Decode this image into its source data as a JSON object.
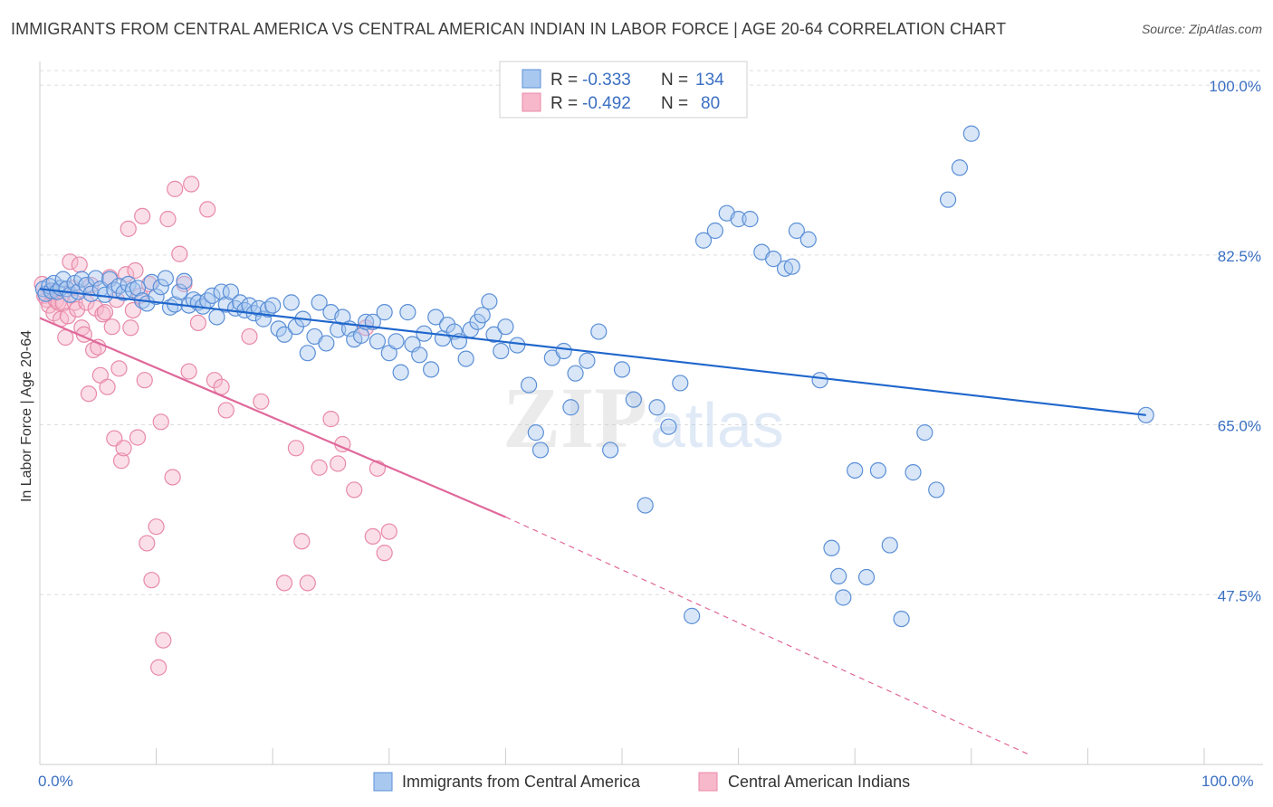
{
  "header": {
    "title": "IMMIGRANTS FROM CENTRAL AMERICA VS CENTRAL AMERICAN INDIAN IN LABOR FORCE | AGE 20-64 CORRELATION CHART",
    "source": "Source: ZipAtlas.com"
  },
  "watermark": {
    "zip": "ZIP",
    "atlas": "atlas"
  },
  "colors": {
    "blue_fill": "#a9c8f0",
    "blue_stroke": "#5b8fd6",
    "blue_line": "#1f66cc",
    "pink_fill": "#f7b8cb",
    "pink_stroke": "#e889a8",
    "pink_line": "#e0689a",
    "tick_text": "#3a6fc2",
    "grid": "#dddddd"
  },
  "legend": {
    "r_label": "R =",
    "n_label": "N =",
    "blue_r": "-0.333",
    "blue_n": "134",
    "pink_r": "-0.492",
    "pink_n": "80"
  },
  "chart_data": {
    "type": "scatter",
    "title": "IMMIGRANTS FROM CENTRAL AMERICA VS CENTRAL AMERICAN INDIAN IN LABOR FORCE | AGE 20-64 CORRELATION CHART",
    "xlabel": "",
    "ylabel": "In Labor Force | Age 20-64",
    "xlim": [
      0,
      100
    ],
    "ylim": [
      30,
      101.5
    ],
    "x_tick_labels": [
      "0.0%",
      "100.0%"
    ],
    "y_ticks": [
      47.5,
      65.0,
      82.5,
      100.0
    ],
    "y_tick_labels": [
      "47.5%",
      "65.0%",
      "82.5%",
      "100.0%"
    ],
    "grid": true,
    "legend_position": "top-center",
    "series": [
      {
        "name": "Immigrants from Central America",
        "color": "#a9c8f0",
        "r": -0.333,
        "n": 134,
        "trend": {
          "x": [
            0,
            95
          ],
          "y": [
            79.0,
            66.0
          ]
        },
        "points": [
          [
            0.3,
            79.0
          ],
          [
            0.5,
            78.5
          ],
          [
            0.8,
            79.3
          ],
          [
            1.0,
            78.8
          ],
          [
            1.2,
            79.6
          ],
          [
            1.5,
            78.7
          ],
          [
            1.8,
            79.1
          ],
          [
            2.0,
            80.0
          ],
          [
            2.3,
            79.0
          ],
          [
            2.6,
            78.4
          ],
          [
            3.0,
            79.6
          ],
          [
            3.3,
            78.7
          ],
          [
            3.6,
            80.0
          ],
          [
            4.0,
            79.4
          ],
          [
            4.4,
            78.5
          ],
          [
            4.8,
            80.1
          ],
          [
            5.2,
            79.0
          ],
          [
            5.6,
            78.4
          ],
          [
            6.0,
            80.0
          ],
          [
            6.4,
            78.9
          ],
          [
            6.8,
            79.3
          ],
          [
            7.2,
            78.6
          ],
          [
            7.6,
            79.5
          ],
          [
            8.0,
            78.9
          ],
          [
            8.4,
            79.1
          ],
          [
            8.8,
            77.8
          ],
          [
            9.2,
            77.5
          ],
          [
            9.6,
            79.7
          ],
          [
            10.0,
            78.2
          ],
          [
            10.4,
            79.2
          ],
          [
            10.8,
            80.1
          ],
          [
            11.2,
            77.1
          ],
          [
            11.6,
            77.4
          ],
          [
            12.0,
            78.7
          ],
          [
            12.4,
            79.8
          ],
          [
            12.8,
            77.3
          ],
          [
            13.2,
            77.9
          ],
          [
            13.6,
            77.6
          ],
          [
            14.0,
            77.2
          ],
          [
            14.4,
            77.8
          ],
          [
            14.8,
            78.3
          ],
          [
            15.2,
            76.1
          ],
          [
            15.6,
            78.7
          ],
          [
            16.0,
            77.4
          ],
          [
            16.4,
            78.7
          ],
          [
            16.8,
            77.0
          ],
          [
            17.2,
            77.6
          ],
          [
            17.6,
            76.8
          ],
          [
            18.0,
            77.3
          ],
          [
            18.4,
            76.5
          ],
          [
            18.8,
            77.0
          ],
          [
            19.2,
            75.9
          ],
          [
            19.6,
            76.9
          ],
          [
            20.0,
            77.3
          ],
          [
            20.5,
            74.9
          ],
          [
            21.0,
            74.3
          ],
          [
            21.6,
            77.6
          ],
          [
            22.0,
            75.1
          ],
          [
            22.6,
            75.9
          ],
          [
            23.0,
            72.4
          ],
          [
            23.6,
            74.1
          ],
          [
            24.0,
            77.6
          ],
          [
            24.6,
            73.4
          ],
          [
            25.0,
            76.6
          ],
          [
            25.6,
            74.8
          ],
          [
            26.0,
            76.1
          ],
          [
            26.6,
            74.9
          ],
          [
            27.0,
            73.8
          ],
          [
            27.6,
            74.2
          ],
          [
            28.0,
            75.6
          ],
          [
            28.6,
            75.6
          ],
          [
            29.0,
            73.6
          ],
          [
            29.6,
            76.6
          ],
          [
            30.0,
            72.4
          ],
          [
            30.6,
            73.6
          ],
          [
            31.0,
            70.4
          ],
          [
            31.6,
            76.6
          ],
          [
            32.0,
            73.3
          ],
          [
            32.6,
            72.2
          ],
          [
            33.0,
            74.4
          ],
          [
            33.6,
            70.7
          ],
          [
            34.0,
            76.1
          ],
          [
            34.6,
            73.9
          ],
          [
            35.0,
            75.3
          ],
          [
            35.6,
            74.6
          ],
          [
            36.0,
            73.6
          ],
          [
            36.6,
            71.8
          ],
          [
            37.0,
            74.8
          ],
          [
            37.6,
            75.6
          ],
          [
            38.0,
            76.3
          ],
          [
            38.6,
            77.7
          ],
          [
            39.0,
            74.3
          ],
          [
            39.6,
            72.6
          ],
          [
            40.0,
            75.1
          ],
          [
            41.0,
            73.2
          ],
          [
            42.0,
            69.1
          ],
          [
            42.6,
            64.2
          ],
          [
            43.0,
            62.4
          ],
          [
            44.0,
            71.9
          ],
          [
            45.0,
            72.6
          ],
          [
            45.6,
            66.8
          ],
          [
            46.0,
            70.3
          ],
          [
            47.0,
            71.6
          ],
          [
            48.0,
            74.6
          ],
          [
            49.0,
            62.4
          ],
          [
            50.0,
            70.7
          ],
          [
            51.0,
            67.6
          ],
          [
            52.0,
            56.7
          ],
          [
            53.0,
            66.8
          ],
          [
            54.0,
            64.8
          ],
          [
            55.0,
            69.3
          ],
          [
            56.0,
            45.3
          ],
          [
            57.0,
            84.0
          ],
          [
            58.0,
            85.0
          ],
          [
            59.0,
            86.8
          ],
          [
            60.0,
            86.2
          ],
          [
            61.0,
            86.2
          ],
          [
            62.0,
            82.8
          ],
          [
            63.0,
            82.1
          ],
          [
            64.0,
            81.1
          ],
          [
            64.6,
            81.3
          ],
          [
            65.0,
            85.0
          ],
          [
            66.0,
            84.1
          ],
          [
            67.0,
            69.6
          ],
          [
            68.0,
            52.3
          ],
          [
            68.6,
            49.4
          ],
          [
            69.0,
            47.2
          ],
          [
            70.0,
            60.3
          ],
          [
            71.0,
            49.3
          ],
          [
            72.0,
            60.3
          ],
          [
            73.0,
            52.6
          ],
          [
            74.0,
            45.0
          ],
          [
            75.0,
            60.1
          ],
          [
            76.0,
            64.2
          ],
          [
            77.0,
            58.3
          ],
          [
            78.0,
            88.2
          ],
          [
            79.0,
            91.5
          ],
          [
            80.0,
            95.0
          ],
          [
            95.0,
            66.0
          ]
        ]
      },
      {
        "name": "Central American Indians",
        "color": "#f7b8cb",
        "r": -0.492,
        "n": 80,
        "trend": {
          "x": [
            0,
            40
          ],
          "y": [
            76.0,
            55.5
          ]
        },
        "trend_dashed": {
          "x": [
            40,
            85
          ],
          "y": [
            55.5,
            31.0
          ]
        },
        "points": [
          [
            0.2,
            79.5
          ],
          [
            0.4,
            78.3
          ],
          [
            0.6,
            77.9
          ],
          [
            0.8,
            77.3
          ],
          [
            1.0,
            78.6
          ],
          [
            1.2,
            76.5
          ],
          [
            1.4,
            77.8
          ],
          [
            1.6,
            77.6
          ],
          [
            1.8,
            75.9
          ],
          [
            2.0,
            77.5
          ],
          [
            2.2,
            74.0
          ],
          [
            2.4,
            76.2
          ],
          [
            2.6,
            81.8
          ],
          [
            2.8,
            79.1
          ],
          [
            3.0,
            77.6
          ],
          [
            3.2,
            76.9
          ],
          [
            3.4,
            81.5
          ],
          [
            3.6,
            75.0
          ],
          [
            3.8,
            74.3
          ],
          [
            4.0,
            77.6
          ],
          [
            4.2,
            68.2
          ],
          [
            4.4,
            79.4
          ],
          [
            4.6,
            72.7
          ],
          [
            4.8,
            77.0
          ],
          [
            5.0,
            73.0
          ],
          [
            5.2,
            70.1
          ],
          [
            5.4,
            76.4
          ],
          [
            5.6,
            76.6
          ],
          [
            5.8,
            68.9
          ],
          [
            6.0,
            80.2
          ],
          [
            6.2,
            75.1
          ],
          [
            6.4,
            63.6
          ],
          [
            6.6,
            77.9
          ],
          [
            6.8,
            70.8
          ],
          [
            7.0,
            61.3
          ],
          [
            7.2,
            62.6
          ],
          [
            7.4,
            80.5
          ],
          [
            7.6,
            85.2
          ],
          [
            7.8,
            75.0
          ],
          [
            8.0,
            76.8
          ],
          [
            8.2,
            80.9
          ],
          [
            8.4,
            63.7
          ],
          [
            8.6,
            78.3
          ],
          [
            8.8,
            86.5
          ],
          [
            9.0,
            69.6
          ],
          [
            9.2,
            52.8
          ],
          [
            9.4,
            79.5
          ],
          [
            9.6,
            49.0
          ],
          [
            10.0,
            54.5
          ],
          [
            10.2,
            40.0
          ],
          [
            10.4,
            65.3
          ],
          [
            10.6,
            42.8
          ],
          [
            11.0,
            86.2
          ],
          [
            11.4,
            59.6
          ],
          [
            11.6,
            89.3
          ],
          [
            12.0,
            82.6
          ],
          [
            12.4,
            79.5
          ],
          [
            12.8,
            70.5
          ],
          [
            13.0,
            89.8
          ],
          [
            13.6,
            75.5
          ],
          [
            14.4,
            87.2
          ],
          [
            15.0,
            69.6
          ],
          [
            15.6,
            68.9
          ],
          [
            16.0,
            66.5
          ],
          [
            18.0,
            74.1
          ],
          [
            19.0,
            67.4
          ],
          [
            21.0,
            48.7
          ],
          [
            22.0,
            62.6
          ],
          [
            22.5,
            53.0
          ],
          [
            23.0,
            48.7
          ],
          [
            24.0,
            60.6
          ],
          [
            25.0,
            65.6
          ],
          [
            25.6,
            61.0
          ],
          [
            26.0,
            63.0
          ],
          [
            27.0,
            58.3
          ],
          [
            28.0,
            75.0
          ],
          [
            28.6,
            53.5
          ],
          [
            29.0,
            60.5
          ],
          [
            29.6,
            51.8
          ],
          [
            30.0,
            54.0
          ]
        ]
      }
    ]
  },
  "bottom_legend": {
    "blue_label": "Immigrants from Central America",
    "pink_label": "Central American Indians"
  },
  "axis": {
    "x_min_label": "0.0%",
    "x_max_label": "100.0%",
    "ylabel": "In Labor Force | Age 20-64"
  }
}
